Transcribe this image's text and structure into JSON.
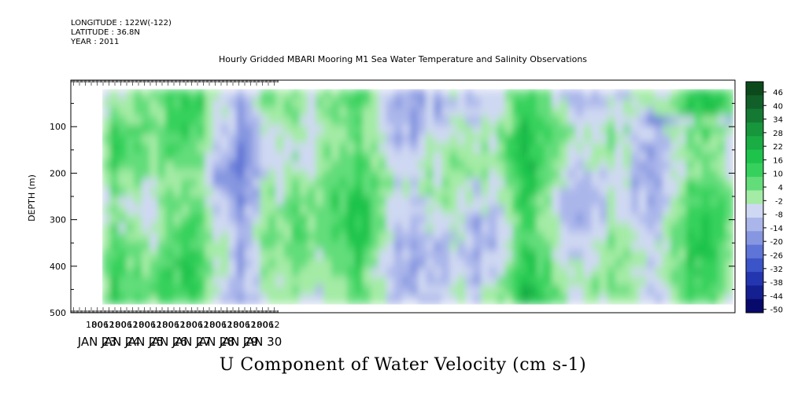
{
  "header": {
    "longitude": "LONGITUDE : 122W(-122)",
    "latitude": "LATITUDE : 36.8N",
    "year": "YEAR : 2011",
    "title": "Hourly Gridded MBARI Mooring M1 Sea Water Temperature and Salinity Observations"
  },
  "bottom_title": "U Component of Water Velocity (cm s-1)",
  "chart_data": {
    "type": "heatmap",
    "title": "Hourly Gridded MBARI Mooring M1 Sea Water Temperature and Salinity Observations",
    "variable": "U Component of Water Velocity (cm s-1)",
    "ylabel": "DEPTH (m)",
    "yreversed": true,
    "ylim": [
      500,
      0
    ],
    "y_ticks": [
      100,
      200,
      300,
      400,
      500
    ],
    "data_depth_range": [
      20,
      480
    ],
    "hour_ticks": [
      "18",
      "00",
      "06",
      "12",
      "18",
      "00",
      "06",
      "12",
      "18",
      "00",
      "06",
      "12",
      "18",
      "00",
      "06",
      "12",
      "18",
      "00",
      "06",
      "12",
      "18",
      "00",
      "06",
      "12",
      "18",
      "00",
      "06",
      "12",
      "18",
      "00",
      "06",
      "12"
    ],
    "day_labels": [
      "JAN 23",
      "JAN 24",
      "JAN 25",
      "JAN 26",
      "JAN 27",
      "JAN 28",
      "JAN 29",
      "JAN 30"
    ],
    "colorbar": {
      "levels": [
        46,
        40,
        34,
        28,
        22,
        16,
        10,
        4,
        -2,
        -8,
        -14,
        -20,
        -26,
        -32,
        -38,
        -44,
        -50
      ],
      "colors": [
        "#0c4a1c",
        "#11602a",
        "#147a33",
        "#17963c",
        "#19ad44",
        "#1ec34c",
        "#35d15c",
        "#62dd7a",
        "#a4eba6",
        "#cfd8f2",
        "#aab6ea",
        "#8696e0",
        "#5e74d6",
        "#3b54c8",
        "#2435b0",
        "#141f90",
        "#070a6a"
      ]
    },
    "summary": "Velocity field dominated by alternating bands of weak positive (green, up to ~20 cm/s) and weak negative (blue, down to ~-25 cm/s) values, with stronger negative flow near the surface on Jan 28 and strong positive columns around Jan 24-25."
  }
}
